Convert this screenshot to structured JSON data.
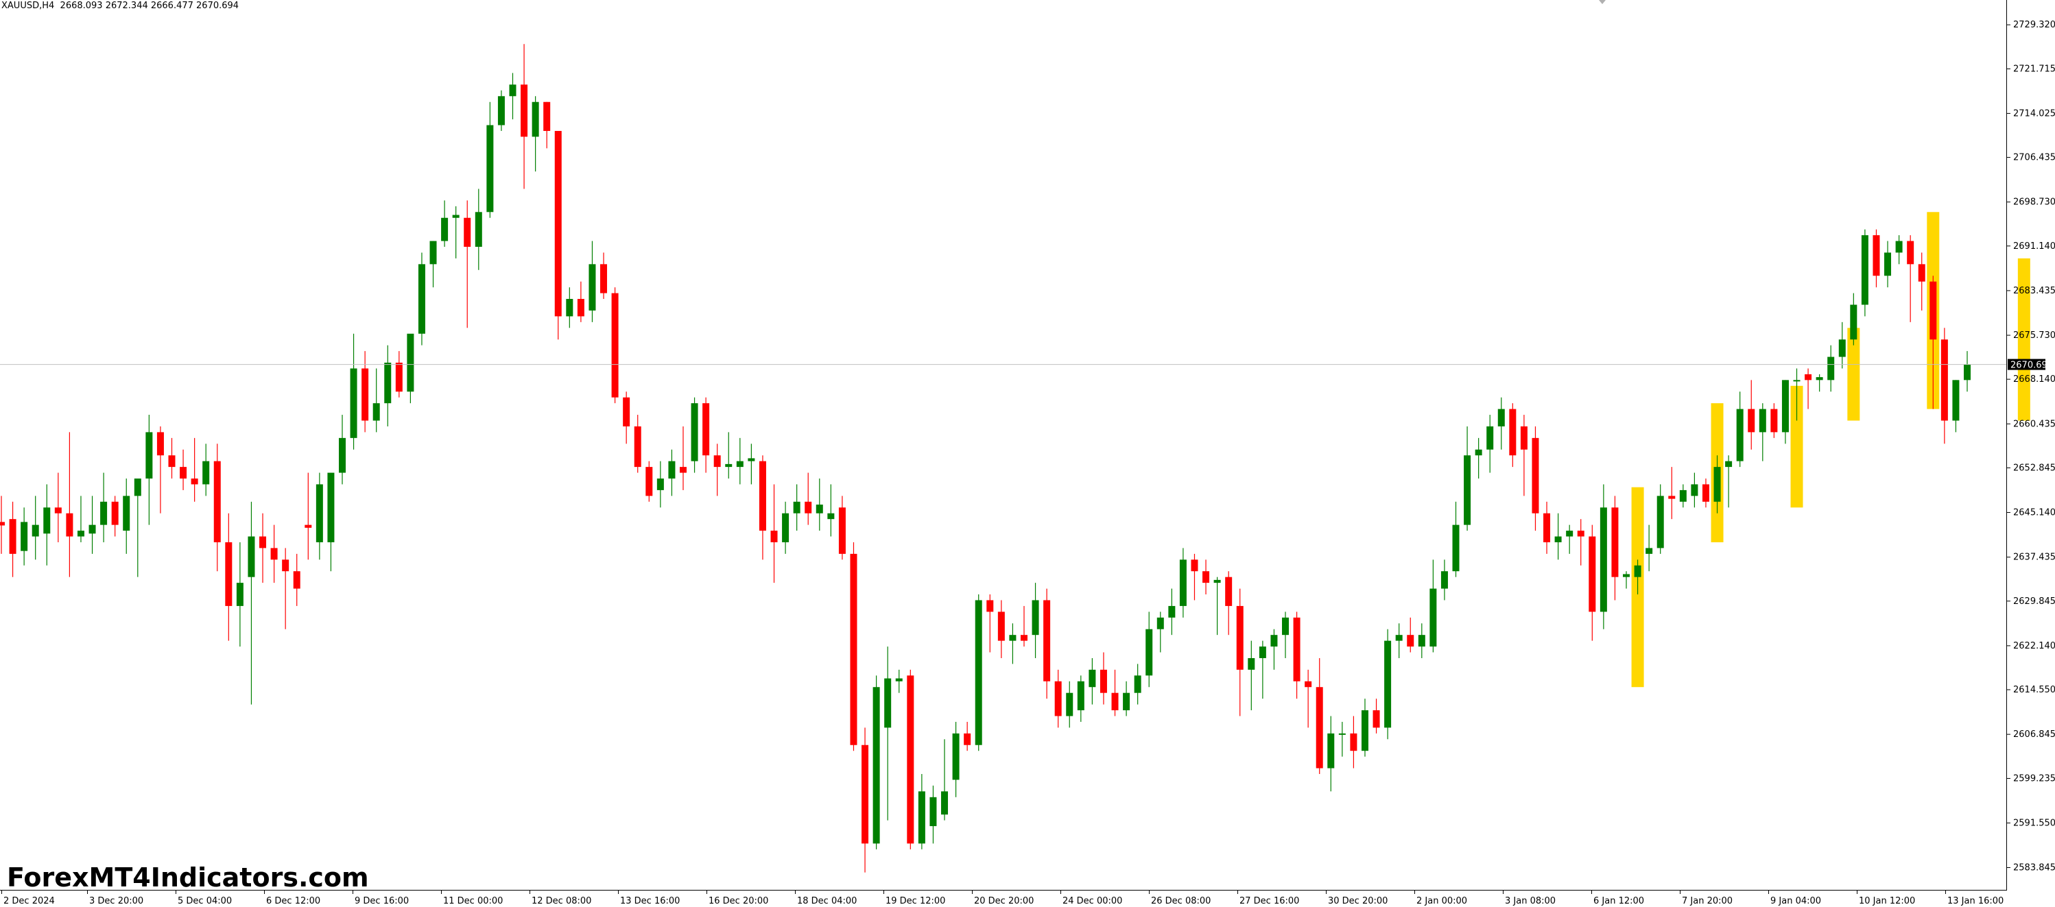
{
  "symbol_info": {
    "symbol": "XAUUSD,H4",
    "ohlc": "2668.093 2672.344 2666.477 2670.694"
  },
  "watermark": "ForexMT4Indicators.com",
  "current_price": "2670.694",
  "colors": {
    "bull": "#007f00",
    "bear": "#ff0000",
    "highlight": "#ffd700",
    "price_line": "#c0c0c0",
    "axis": "#000000",
    "background": "#ffffff",
    "price_tag_bg": "#000000",
    "price_tag_text": "#ffffff"
  },
  "chart_data": {
    "type": "candlestick",
    "ylim": [
      2580.0,
      2733.6
    ],
    "y_ticks": [
      "2729.320",
      "2721.715",
      "2714.025",
      "2706.435",
      "2698.730",
      "2691.140",
      "2683.435",
      "2675.730",
      "2668.140",
      "2660.435",
      "2652.845",
      "2645.140",
      "2637.435",
      "2629.845",
      "2622.140",
      "2614.550",
      "2606.845",
      "2599.235",
      "2591.550",
      "2583.845"
    ],
    "x_ticks": [
      "2 Dec 2024",
      "3 Dec 20:00",
      "5 Dec 04:00",
      "6 Dec 12:00",
      "9 Dec 16:00",
      "11 Dec 00:00",
      "12 Dec 08:00",
      "13 Dec 16:00",
      "16 Dec 20:00",
      "18 Dec 04:00",
      "19 Dec 12:00",
      "20 Dec 20:00",
      "24 Dec 00:00",
      "26 Dec 08:00",
      "27 Dec 16:00",
      "30 Dec 20:00",
      "2 Jan 00:00",
      "3 Jan 08:00",
      "6 Jan 12:00",
      "7 Jan 20:00",
      "9 Jan 04:00",
      "10 Jan 12:00",
      "13 Jan 16:00"
    ],
    "candles": [
      {
        "o": 2643.5,
        "h": 2648.0,
        "l": 2638.0,
        "c": 2642.9
      },
      {
        "o": 2644.0,
        "h": 2647.0,
        "l": 2634.0,
        "c": 2638.0
      },
      {
        "o": 2638.5,
        "h": 2646.0,
        "l": 2636.0,
        "c": 2643.5
      },
      {
        "o": 2641.0,
        "h": 2648.0,
        "l": 2637.0,
        "c": 2643.0
      },
      {
        "o": 2641.5,
        "h": 2650.0,
        "l": 2636.0,
        "c": 2646.0
      },
      {
        "o": 2646.0,
        "h": 2652.0,
        "l": 2640.0,
        "c": 2645.0
      },
      {
        "o": 2645.0,
        "h": 2659.0,
        "l": 2634.0,
        "c": 2641.0
      },
      {
        "o": 2641.0,
        "h": 2648.0,
        "l": 2640.0,
        "c": 2642.0
      },
      {
        "o": 2641.5,
        "h": 2648.0,
        "l": 2638.0,
        "c": 2643.0
      },
      {
        "o": 2643.0,
        "h": 2652.0,
        "l": 2640.0,
        "c": 2647.0
      },
      {
        "o": 2647.0,
        "h": 2648.0,
        "l": 2641.0,
        "c": 2643.0
      },
      {
        "o": 2642.0,
        "h": 2651.0,
        "l": 2638.0,
        "c": 2648.0
      },
      {
        "o": 2648.0,
        "h": 2650.0,
        "l": 2634.0,
        "c": 2651.0
      },
      {
        "o": 2651.0,
        "h": 2662.0,
        "l": 2643.0,
        "c": 2659.0
      },
      {
        "o": 2659.0,
        "h": 2660.0,
        "l": 2645.0,
        "c": 2655.0
      },
      {
        "o": 2655.0,
        "h": 2658.0,
        "l": 2651.0,
        "c": 2653.0
      },
      {
        "o": 2653.0,
        "h": 2656.0,
        "l": 2649.0,
        "c": 2651.0
      },
      {
        "o": 2651.0,
        "h": 2658.0,
        "l": 2647.0,
        "c": 2650.0
      },
      {
        "o": 2650.0,
        "h": 2657.0,
        "l": 2648.0,
        "c": 2654.0
      },
      {
        "o": 2654.0,
        "h": 2657.0,
        "l": 2635.0,
        "c": 2640.0
      },
      {
        "o": 2640.0,
        "h": 2645.0,
        "l": 2623.0,
        "c": 2629.0
      },
      {
        "o": 2629.0,
        "h": 2640.0,
        "l": 2622.0,
        "c": 2633.0
      },
      {
        "o": 2634.0,
        "h": 2647.0,
        "l": 2612.0,
        "c": 2641.0
      },
      {
        "o": 2641.0,
        "h": 2645.0,
        "l": 2633.0,
        "c": 2639.0
      },
      {
        "o": 2639.0,
        "h": 2643.0,
        "l": 2633.0,
        "c": 2637.0
      },
      {
        "o": 2637.0,
        "h": 2639.0,
        "l": 2625.0,
        "c": 2635.0
      },
      {
        "o": 2635.0,
        "h": 2638.0,
        "l": 2629.0,
        "c": 2632.0
      },
      {
        "o": 2643.0,
        "h": 2652.0,
        "l": 2637.0,
        "c": 2642.5
      },
      {
        "o": 2640.0,
        "h": 2652.0,
        "l": 2637.0,
        "c": 2650.0
      },
      {
        "o": 2640.0,
        "h": 2652.0,
        "l": 2635.0,
        "c": 2652.0
      },
      {
        "o": 2652.0,
        "h": 2662.0,
        "l": 2650.0,
        "c": 2658.0
      },
      {
        "o": 2658.0,
        "h": 2676.0,
        "l": 2656.0,
        "c": 2670.0
      },
      {
        "o": 2670.0,
        "h": 2673.0,
        "l": 2659.0,
        "c": 2661.0
      },
      {
        "o": 2661.0,
        "h": 2670.0,
        "l": 2659.0,
        "c": 2664.0
      },
      {
        "o": 2664.0,
        "h": 2674.0,
        "l": 2660.0,
        "c": 2671.0
      },
      {
        "o": 2671.0,
        "h": 2673.0,
        "l": 2665.0,
        "c": 2666.0
      },
      {
        "o": 2666.0,
        "h": 2675.0,
        "l": 2664.0,
        "c": 2676.0
      },
      {
        "o": 2676.0,
        "h": 2690.0,
        "l": 2674.0,
        "c": 2688.0
      },
      {
        "o": 2688.0,
        "h": 2692.0,
        "l": 2684.0,
        "c": 2692.0
      },
      {
        "o": 2692.0,
        "h": 2699.0,
        "l": 2691.0,
        "c": 2696.0
      },
      {
        "o": 2696.0,
        "h": 2698.0,
        "l": 2689.0,
        "c": 2696.5
      },
      {
        "o": 2696.0,
        "h": 2699.0,
        "l": 2677.0,
        "c": 2691.0
      },
      {
        "o": 2691.0,
        "h": 2701.0,
        "l": 2687.0,
        "c": 2697.0
      },
      {
        "o": 2697.0,
        "h": 2716.0,
        "l": 2696.0,
        "c": 2712.0
      },
      {
        "o": 2712.0,
        "h": 2718.0,
        "l": 2711.0,
        "c": 2717.0
      },
      {
        "o": 2717.0,
        "h": 2721.0,
        "l": 2713.0,
        "c": 2719.0
      },
      {
        "o": 2719.0,
        "h": 2726.0,
        "l": 2701.0,
        "c": 2710.0
      },
      {
        "o": 2710.0,
        "h": 2717.0,
        "l": 2704.0,
        "c": 2716.0
      },
      {
        "o": 2716.0,
        "h": 2716.0,
        "l": 2708.0,
        "c": 2711.0
      },
      {
        "o": 2711.0,
        "h": 2711.0,
        "l": 2675.0,
        "c": 2679.0
      },
      {
        "o": 2679.0,
        "h": 2684.0,
        "l": 2677.0,
        "c": 2682.0
      },
      {
        "o": 2682.0,
        "h": 2685.0,
        "l": 2678.0,
        "c": 2679.0
      },
      {
        "o": 2680.0,
        "h": 2692.0,
        "l": 2678.0,
        "c": 2688.0
      },
      {
        "o": 2688.0,
        "h": 2690.0,
        "l": 2682.0,
        "c": 2683.0
      },
      {
        "o": 2683.0,
        "h": 2684.0,
        "l": 2664.0,
        "c": 2665.0
      },
      {
        "o": 2665.0,
        "h": 2666.0,
        "l": 2657.0,
        "c": 2660.0
      },
      {
        "o": 2660.0,
        "h": 2662.0,
        "l": 2652.0,
        "c": 2653.0
      },
      {
        "o": 2653.0,
        "h": 2654.0,
        "l": 2647.0,
        "c": 2648.0
      },
      {
        "o": 2649.0,
        "h": 2654.0,
        "l": 2646.0,
        "c": 2651.0
      },
      {
        "o": 2651.0,
        "h": 2656.0,
        "l": 2648.0,
        "c": 2654.0
      },
      {
        "o": 2653.0,
        "h": 2660.0,
        "l": 2649.0,
        "c": 2652.0
      },
      {
        "o": 2654.0,
        "h": 2665.0,
        "l": 2652.0,
        "c": 2664.0
      },
      {
        "o": 2664.0,
        "h": 2665.0,
        "l": 2652.0,
        "c": 2655.0
      },
      {
        "o": 2655.0,
        "h": 2657.0,
        "l": 2648.0,
        "c": 2653.0
      },
      {
        "o": 2653.0,
        "h": 2659.0,
        "l": 2651.0,
        "c": 2653.5
      },
      {
        "o": 2653.0,
        "h": 2658.0,
        "l": 2650.0,
        "c": 2654.0
      },
      {
        "o": 2654.0,
        "h": 2657.0,
        "l": 2650.0,
        "c": 2654.5
      },
      {
        "o": 2654.0,
        "h": 2655.0,
        "l": 2637.0,
        "c": 2642.0
      },
      {
        "o": 2642.0,
        "h": 2650.0,
        "l": 2633.0,
        "c": 2640.0
      },
      {
        "o": 2640.0,
        "h": 2647.0,
        "l": 2638.0,
        "c": 2645.0
      },
      {
        "o": 2645.0,
        "h": 2650.0,
        "l": 2642.0,
        "c": 2647.0
      },
      {
        "o": 2647.0,
        "h": 2652.0,
        "l": 2643.0,
        "c": 2645.0
      },
      {
        "o": 2645.0,
        "h": 2651.0,
        "l": 2642.0,
        "c": 2646.5
      },
      {
        "o": 2644.0,
        "h": 2650.0,
        "l": 2641.0,
        "c": 2645.0
      },
      {
        "o": 2646.0,
        "h": 2648.0,
        "l": 2637.0,
        "c": 2638.0
      },
      {
        "o": 2638.0,
        "h": 2640.0,
        "l": 2604.0,
        "c": 2605.0
      },
      {
        "o": 2605.0,
        "h": 2608.0,
        "l": 2583.0,
        "c": 2588.0
      },
      {
        "o": 2588.0,
        "h": 2617.0,
        "l": 2587.0,
        "c": 2615.0
      },
      {
        "o": 2608.0,
        "h": 2622.0,
        "l": 2592.0,
        "c": 2616.5
      },
      {
        "o": 2616.0,
        "h": 2618.0,
        "l": 2614.0,
        "c": 2616.5
      },
      {
        "o": 2617.0,
        "h": 2618.0,
        "l": 2587.0,
        "c": 2588.0
      },
      {
        "o": 2588.0,
        "h": 2600.0,
        "l": 2587.0,
        "c": 2597.0
      },
      {
        "o": 2591.0,
        "h": 2598.0,
        "l": 2588.0,
        "c": 2596.0
      },
      {
        "o": 2593.0,
        "h": 2606.0,
        "l": 2592.0,
        "c": 2597.0
      },
      {
        "o": 2599.0,
        "h": 2609.0,
        "l": 2596.0,
        "c": 2607.0
      },
      {
        "o": 2607.0,
        "h": 2609.0,
        "l": 2604.0,
        "c": 2605.0
      },
      {
        "o": 2605.0,
        "h": 2631.0,
        "l": 2604.0,
        "c": 2630.0
      },
      {
        "o": 2630.0,
        "h": 2631.0,
        "l": 2621.0,
        "c": 2628.0
      },
      {
        "o": 2628.0,
        "h": 2630.0,
        "l": 2620.0,
        "c": 2623.0
      },
      {
        "o": 2623.0,
        "h": 2626.0,
        "l": 2619.0,
        "c": 2624.0
      },
      {
        "o": 2624.0,
        "h": 2629.0,
        "l": 2622.0,
        "c": 2623.0
      },
      {
        "o": 2624.0,
        "h": 2633.0,
        "l": 2620.0,
        "c": 2630.0
      },
      {
        "o": 2630.0,
        "h": 2632.0,
        "l": 2613.0,
        "c": 2616.0
      },
      {
        "o": 2616.0,
        "h": 2618.0,
        "l": 2608.0,
        "c": 2610.0
      },
      {
        "o": 2610.0,
        "h": 2616.0,
        "l": 2608.0,
        "c": 2614.0
      },
      {
        "o": 2611.0,
        "h": 2617.0,
        "l": 2609.0,
        "c": 2616.0
      },
      {
        "o": 2615.0,
        "h": 2620.0,
        "l": 2612.0,
        "c": 2618.0
      },
      {
        "o": 2618.0,
        "h": 2621.0,
        "l": 2612.0,
        "c": 2614.0
      },
      {
        "o": 2614.0,
        "h": 2618.0,
        "l": 2610.0,
        "c": 2611.0
      },
      {
        "o": 2611.0,
        "h": 2616.0,
        "l": 2610.0,
        "c": 2614.0
      },
      {
        "o": 2614.0,
        "h": 2619.0,
        "l": 2612.0,
        "c": 2617.0
      },
      {
        "o": 2617.0,
        "h": 2628.0,
        "l": 2615.0,
        "c": 2625.0
      },
      {
        "o": 2625.0,
        "h": 2628.0,
        "l": 2621.0,
        "c": 2627.0
      },
      {
        "o": 2627.0,
        "h": 2632.0,
        "l": 2624.0,
        "c": 2629.0
      },
      {
        "o": 2629.0,
        "h": 2639.0,
        "l": 2627.0,
        "c": 2637.0
      },
      {
        "o": 2637.0,
        "h": 2638.0,
        "l": 2630.0,
        "c": 2635.0
      },
      {
        "o": 2635.0,
        "h": 2637.0,
        "l": 2631.0,
        "c": 2633.0
      },
      {
        "o": 2633.0,
        "h": 2634.0,
        "l": 2624.0,
        "c": 2633.5
      },
      {
        "o": 2634.0,
        "h": 2635.0,
        "l": 2624.0,
        "c": 2629.0
      },
      {
        "o": 2629.0,
        "h": 2632.0,
        "l": 2610.0,
        "c": 2618.0
      },
      {
        "o": 2618.0,
        "h": 2623.0,
        "l": 2611.0,
        "c": 2620.0
      },
      {
        "o": 2620.0,
        "h": 2623.0,
        "l": 2613.0,
        "c": 2622.0
      },
      {
        "o": 2622.0,
        "h": 2625.0,
        "l": 2618.0,
        "c": 2624.0
      },
      {
        "o": 2624.0,
        "h": 2628.0,
        "l": 2620.0,
        "c": 2627.0
      },
      {
        "o": 2627.0,
        "h": 2628.0,
        "l": 2613.0,
        "c": 2616.0
      },
      {
        "o": 2616.0,
        "h": 2618.0,
        "l": 2608.0,
        "c": 2615.0
      },
      {
        "o": 2615.0,
        "h": 2620.0,
        "l": 2600.0,
        "c": 2601.0
      },
      {
        "o": 2601.0,
        "h": 2610.0,
        "l": 2597.0,
        "c": 2607.0
      },
      {
        "o": 2607.0,
        "h": 2609.0,
        "l": 2603.0,
        "c": 2607.0
      },
      {
        "o": 2607.0,
        "h": 2610.0,
        "l": 2601.0,
        "c": 2604.0
      },
      {
        "o": 2604.0,
        "h": 2613.0,
        "l": 2603.0,
        "c": 2611.0
      },
      {
        "o": 2611.0,
        "h": 2613.0,
        "l": 2607.0,
        "c": 2608.0
      },
      {
        "o": 2608.0,
        "h": 2625.0,
        "l": 2606.0,
        "c": 2623.0
      },
      {
        "o": 2623.0,
        "h": 2626.0,
        "l": 2620.0,
        "c": 2624.0
      },
      {
        "o": 2624.0,
        "h": 2627.0,
        "l": 2621.0,
        "c": 2622.0
      },
      {
        "o": 2622.0,
        "h": 2626.0,
        "l": 2620.0,
        "c": 2624.0
      },
      {
        "o": 2622.0,
        "h": 2637.0,
        "l": 2621.0,
        "c": 2632.0
      },
      {
        "o": 2632.0,
        "h": 2637.0,
        "l": 2630.0,
        "c": 2635.0
      },
      {
        "o": 2635.0,
        "h": 2647.0,
        "l": 2634.0,
        "c": 2643.0
      },
      {
        "o": 2643.0,
        "h": 2660.0,
        "l": 2642.0,
        "c": 2655.0
      },
      {
        "o": 2655.0,
        "h": 2658.0,
        "l": 2651.0,
        "c": 2656.0
      },
      {
        "o": 2656.0,
        "h": 2662.0,
        "l": 2652.0,
        "c": 2660.0
      },
      {
        "o": 2660.0,
        "h": 2665.0,
        "l": 2656.0,
        "c": 2663.0
      },
      {
        "o": 2663.0,
        "h": 2664.0,
        "l": 2653.0,
        "c": 2655.0
      },
      {
        "o": 2660.0,
        "h": 2662.0,
        "l": 2648.0,
        "c": 2656.0
      },
      {
        "o": 2658.0,
        "h": 2660.0,
        "l": 2642.0,
        "c": 2645.0
      },
      {
        "o": 2645.0,
        "h": 2647.0,
        "l": 2638.0,
        "c": 2640.0
      },
      {
        "o": 2640.0,
        "h": 2645.0,
        "l": 2637.0,
        "c": 2641.0
      },
      {
        "o": 2641.0,
        "h": 2643.0,
        "l": 2638.0,
        "c": 2642.0
      },
      {
        "o": 2642.0,
        "h": 2644.0,
        "l": 2636.0,
        "c": 2641.0
      },
      {
        "o": 2641.0,
        "h": 2643.0,
        "l": 2623.0,
        "c": 2628.0
      },
      {
        "o": 2628.0,
        "h": 2650.0,
        "l": 2625.0,
        "c": 2646.0
      },
      {
        "o": 2646.0,
        "h": 2648.0,
        "l": 2630.0,
        "c": 2634.0
      },
      {
        "o": 2634.0,
        "h": 2635.0,
        "l": 2632.0,
        "c": 2634.5
      },
      {
        "o": 2634.0,
        "h": 2637.0,
        "l": 2631.0,
        "c": 2636.0
      },
      {
        "o": 2638.0,
        "h": 2643.0,
        "l": 2635.0,
        "c": 2639.0
      },
      {
        "o": 2639.0,
        "h": 2650.0,
        "l": 2638.0,
        "c": 2648.0
      },
      {
        "o": 2648.0,
        "h": 2653.0,
        "l": 2644.0,
        "c": 2647.5
      },
      {
        "o": 2647.0,
        "h": 2650.0,
        "l": 2646.0,
        "c": 2649.0
      },
      {
        "o": 2648.0,
        "h": 2652.0,
        "l": 2646.0,
        "c": 2650.0
      },
      {
        "o": 2650.0,
        "h": 2651.0,
        "l": 2646.0,
        "c": 2647.0
      },
      {
        "o": 2647.0,
        "h": 2655.0,
        "l": 2645.0,
        "c": 2653.0
      },
      {
        "o": 2653.0,
        "h": 2655.0,
        "l": 2646.0,
        "c": 2654.0
      },
      {
        "o": 2654.0,
        "h": 2666.0,
        "l": 2653.0,
        "c": 2663.0
      },
      {
        "o": 2663.0,
        "h": 2668.0,
        "l": 2656.0,
        "c": 2659.0
      },
      {
        "o": 2659.0,
        "h": 2664.0,
        "l": 2654.0,
        "c": 2663.0
      },
      {
        "o": 2663.0,
        "h": 2664.0,
        "l": 2658.0,
        "c": 2659.0
      },
      {
        "o": 2659.0,
        "h": 2668.0,
        "l": 2657.0,
        "c": 2668.0
      },
      {
        "o": 2668.0,
        "h": 2670.0,
        "l": 2661.0,
        "c": 2668.0
      },
      {
        "o": 2669.0,
        "h": 2670.0,
        "l": 2663.0,
        "c": 2668.0
      },
      {
        "o": 2668.0,
        "h": 2669.0,
        "l": 2666.0,
        "c": 2668.5
      },
      {
        "o": 2668.0,
        "h": 2674.0,
        "l": 2666.0,
        "c": 2672.0
      },
      {
        "o": 2672.0,
        "h": 2678.0,
        "l": 2670.0,
        "c": 2675.0
      },
      {
        "o": 2675.0,
        "h": 2683.0,
        "l": 2674.0,
        "c": 2681.0
      },
      {
        "o": 2681.0,
        "h": 2694.0,
        "l": 2679.0,
        "c": 2693.0
      },
      {
        "o": 2693.0,
        "h": 2694.0,
        "l": 2684.0,
        "c": 2686.0
      },
      {
        "o": 2686.0,
        "h": 2692.0,
        "l": 2684.0,
        "c": 2690.0
      },
      {
        "o": 2690.0,
        "h": 2693.0,
        "l": 2688.0,
        "c": 2692.0
      },
      {
        "o": 2692.0,
        "h": 2693.0,
        "l": 2678.0,
        "c": 2688.0
      },
      {
        "o": 2688.0,
        "h": 2690.0,
        "l": 2680.0,
        "c": 2685.0
      },
      {
        "o": 2685.0,
        "h": 2686.0,
        "l": 2663.0,
        "c": 2675.0
      },
      {
        "o": 2675.0,
        "h": 2677.0,
        "l": 2657.0,
        "c": 2661.0
      },
      {
        "o": 2661.0,
        "h": 2668.0,
        "l": 2659.0,
        "c": 2668.0
      },
      {
        "o": 2668.0,
        "h": 2673.0,
        "l": 2666.0,
        "c": 2670.694
      }
    ],
    "highlights": [
      {
        "index": 144,
        "top": 2649.5,
        "bottom": 2615.0
      },
      {
        "index": 151,
        "top": 2664.0,
        "bottom": 2640.0
      },
      {
        "index": 158,
        "top": 2667.0,
        "bottom": 2646.0
      },
      {
        "index": 163,
        "top": 2677.0,
        "bottom": 2661.0
      },
      {
        "index": 170,
        "top": 2697.0,
        "bottom": 2663.0
      },
      {
        "index": 178,
        "top": 2689.0,
        "bottom": 2661.0
      }
    ]
  }
}
